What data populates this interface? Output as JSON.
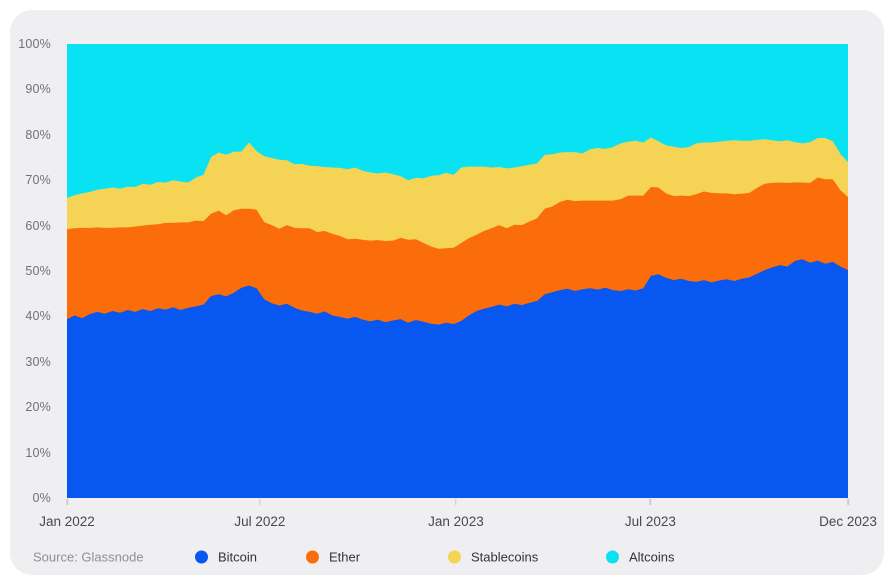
{
  "footer": {
    "source": "Source: Glassnode"
  },
  "chart_data": {
    "type": "area",
    "stacked": true,
    "unit": "percent",
    "title": "",
    "xlabel": "",
    "ylabel": "",
    "ylim": [
      0,
      100
    ],
    "grid": false,
    "legend_position": "bottom",
    "x_range": [
      "Jan 2022",
      "Dec 2023"
    ],
    "x_ticks": [
      {
        "label": "Jan 2022",
        "t": 0
      },
      {
        "label": "Jul 2022",
        "t": 0.247
      },
      {
        "label": "Jan 2023",
        "t": 0.498
      },
      {
        "label": "Jul 2023",
        "t": 0.747
      },
      {
        "label": "Dec 2023",
        "t": 1
      }
    ],
    "y_ticks": [
      "100%",
      "90%",
      "80%",
      "70%",
      "60%",
      "50%",
      "40%",
      "30%",
      "20%",
      "10%",
      "0%"
    ],
    "colors": {
      "bitcoin": "#0757f0",
      "ether": "#fb6c0a",
      "stablecoins": "#f5d354",
      "altcoins": "#08e2f2"
    },
    "series": [
      {
        "name": "Bitcoin",
        "color": "#0757f0",
        "values": [
          39.4,
          40.2,
          39.6,
          40.5,
          41.0,
          40.6,
          41.2,
          40.8,
          41.4,
          41.0,
          41.6,
          41.2,
          41.8,
          41.5,
          42.0,
          41.4,
          41.9,
          42.2,
          42.6,
          44.5,
          44.9,
          44.4,
          45.2,
          46.3,
          46.8,
          46.2,
          43.8,
          42.9,
          42.4,
          42.8,
          41.9,
          41.3,
          41.0,
          40.6,
          41.1,
          40.2,
          39.9,
          39.5,
          39.9,
          39.3,
          38.9,
          39.3,
          38.7,
          39.1,
          39.4,
          38.6,
          39.2,
          38.8,
          38.4,
          38.2,
          38.6,
          38.3,
          39.0,
          40.2,
          41.2,
          41.7,
          42.1,
          42.6,
          42.2,
          42.8,
          42.5,
          43.0,
          43.4,
          44.9,
          45.3,
          45.8,
          46.1,
          45.6,
          46.0,
          46.2,
          45.9,
          46.3,
          45.8,
          45.6,
          46.0,
          45.7,
          46.2,
          48.9,
          49.3,
          48.5,
          48.0,
          48.3,
          47.8,
          47.6,
          48.0,
          47.5,
          47.9,
          48.2,
          47.8,
          48.3,
          48.6,
          49.4,
          50.2,
          50.8,
          51.3,
          51.0,
          52.2,
          52.6,
          51.8,
          52.3,
          51.6,
          52.0,
          51.0,
          50.2
        ]
      },
      {
        "name": "Ether",
        "color": "#fb6c0a",
        "values": [
          19.8,
          19.2,
          19.9,
          19.0,
          18.6,
          18.9,
          18.3,
          18.8,
          18.2,
          18.8,
          18.4,
          19.0,
          18.5,
          19.1,
          18.6,
          19.3,
          18.8,
          18.9,
          18.4,
          18.1,
          18.4,
          17.9,
          18.2,
          17.4,
          16.9,
          17.3,
          17.0,
          17.2,
          16.9,
          17.3,
          17.6,
          18.1,
          18.4,
          18.0,
          17.7,
          18.0,
          17.8,
          17.5,
          17.2,
          17.6,
          17.8,
          17.5,
          17.9,
          17.6,
          17.9,
          18.3,
          17.8,
          17.4,
          17.0,
          16.7,
          16.4,
          16.8,
          17.2,
          17.0,
          16.8,
          17.1,
          17.3,
          17.5,
          17.2,
          17.4,
          17.6,
          17.9,
          18.2,
          18.8,
          18.9,
          19.4,
          19.6,
          19.8,
          19.5,
          19.3,
          19.6,
          19.2,
          19.7,
          20.2,
          20.6,
          20.9,
          20.4,
          19.6,
          19.1,
          18.6,
          18.5,
          18.3,
          18.7,
          19.3,
          19.5,
          19.7,
          19.2,
          18.9,
          19.1,
          18.7,
          18.6,
          18.9,
          19.0,
          18.6,
          18.2,
          18.4,
          17.3,
          16.9,
          17.6,
          18.3,
          18.6,
          18.2,
          16.8,
          16.1
        ]
      },
      {
        "name": "Stablecoins",
        "color": "#f5d354",
        "values": [
          6.9,
          7.3,
          7.6,
          7.9,
          8.3,
          8.6,
          8.9,
          8.5,
          9.0,
          8.7,
          9.2,
          8.8,
          9.3,
          8.9,
          9.4,
          9.0,
          8.8,
          9.5,
          10.2,
          12.5,
          12.8,
          13.3,
          12.9,
          12.6,
          14.6,
          12.9,
          14.5,
          14.8,
          15.2,
          14.3,
          14.0,
          14.2,
          13.8,
          14.5,
          14.1,
          14.6,
          15.0,
          15.4,
          15.7,
          15.2,
          15.0,
          14.7,
          15.1,
          14.6,
          13.6,
          13.1,
          13.5,
          14.2,
          15.6,
          16.2,
          16.6,
          16.1,
          16.6,
          15.8,
          15.0,
          14.2,
          13.4,
          12.8,
          13.2,
          12.6,
          13.0,
          12.5,
          12.1,
          11.9,
          11.5,
          10.9,
          10.5,
          10.8,
          10.4,
          11.3,
          11.6,
          11.4,
          11.8,
          12.3,
          11.9,
          12.1,
          11.7,
          10.9,
          10.2,
          10.6,
          10.9,
          10.5,
          10.8,
          11.2,
          10.8,
          11.1,
          11.4,
          11.6,
          11.9,
          11.7,
          11.5,
          10.6,
          9.8,
          9.4,
          9.1,
          9.4,
          8.9,
          8.6,
          9.0,
          8.7,
          9.1,
          8.4,
          8.0,
          7.7
        ]
      },
      {
        "name": "Altcoins",
        "color": "#08e2f2",
        "remainder": true,
        "values": []
      }
    ]
  }
}
